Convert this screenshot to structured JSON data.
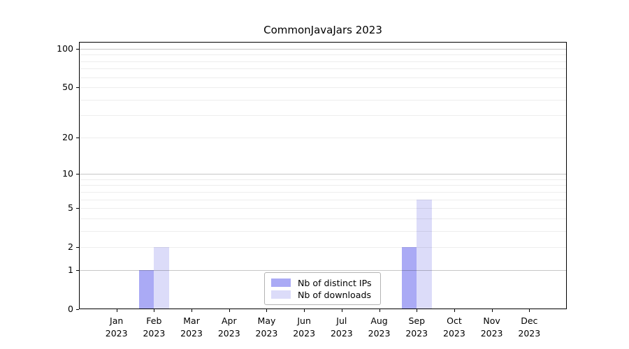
{
  "chart_data": {
    "type": "bar",
    "title": "CommonJavaJars 2023",
    "x_year_label": "2023",
    "categories": [
      "Jan",
      "Feb",
      "Mar",
      "Apr",
      "May",
      "Jun",
      "Jul",
      "Aug",
      "Sep",
      "Oct",
      "Nov",
      "Dec"
    ],
    "series": [
      {
        "name": "Nb of distinct IPs",
        "color": "#aaaaf5",
        "values": [
          0,
          1,
          0,
          0,
          0,
          0,
          0,
          0,
          2,
          0,
          0,
          0
        ]
      },
      {
        "name": "Nb of downloads",
        "color": "#dcdcf9",
        "values": [
          0,
          2,
          0,
          0,
          0,
          0,
          0,
          0,
          6,
          0,
          0,
          0
        ]
      }
    ],
    "y_axis": {
      "scale": "log1p",
      "tick_labels": [
        0,
        1,
        2,
        5,
        10,
        20,
        50,
        100
      ],
      "major_gridlines": [
        1,
        10,
        100
      ],
      "minor_gridlines": [
        2,
        3,
        4,
        5,
        6,
        7,
        8,
        9,
        20,
        30,
        40,
        50,
        60,
        70,
        80,
        90
      ],
      "range_top_value": 113,
      "grid": true
    },
    "legend": {
      "position": "lower center",
      "entries": [
        "Nb of distinct IPs",
        "Nb of downloads"
      ]
    },
    "colors": {
      "bar_distinct_ips": "#aaaaf5",
      "bar_downloads": "#dcdcf9",
      "major_grid": "#c8c8c8",
      "minor_grid": "#ededed",
      "axis": "#000000",
      "legend_border": "#b3b3b3",
      "background": "#ffffff"
    }
  }
}
